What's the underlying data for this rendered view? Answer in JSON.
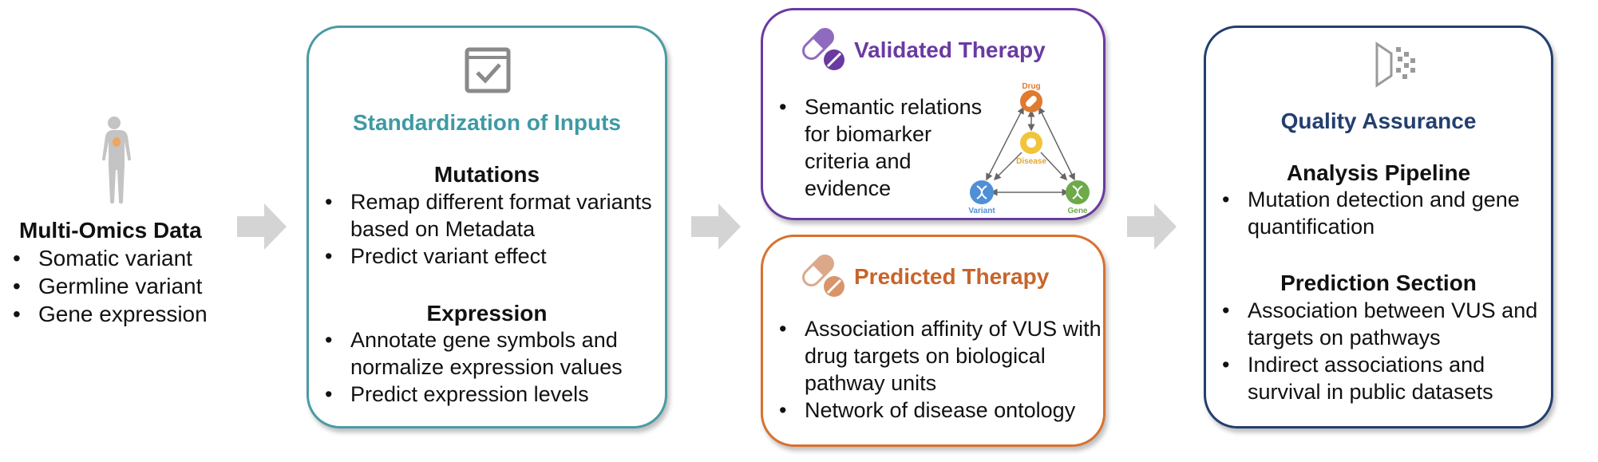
{
  "multi_omics": {
    "title": "Multi-Omics Data",
    "items": [
      "Somatic variant",
      "Germline variant",
      "Gene expression"
    ]
  },
  "standardization": {
    "title": "Standardization of Inputs",
    "mutations": {
      "title": "Mutations",
      "items": [
        "Remap different format variants based on Metadata",
        "Predict variant effect"
      ]
    },
    "expression": {
      "title": "Expression",
      "items": [
        "Annotate gene symbols and normalize expression values",
        "Predict expression levels"
      ]
    }
  },
  "validated": {
    "title": "Validated Therapy",
    "items": [
      "Semantic relations for biomarker criteria and evidence"
    ],
    "diagram": {
      "drug": "Drug",
      "disease": "Disease",
      "variant": "Variant",
      "gene": "Gene"
    }
  },
  "predicted": {
    "title": "Predicted Therapy",
    "items": [
      "Association affinity of VUS with drug targets on biological pathway units",
      "Network of disease ontology"
    ]
  },
  "qa": {
    "title": "Quality Assurance",
    "analysis": {
      "title": "Analysis Pipeline",
      "items": [
        "Mutation detection and gene quantification"
      ]
    },
    "prediction": {
      "title": "Prediction Section",
      "items": [
        "Association between VUS and targets on pathways",
        "Indirect associations and survival in public datasets"
      ]
    }
  },
  "colors": {
    "teal": "#4a9ba3",
    "purple": "#6a3aa1",
    "orange": "#d9712e",
    "navy": "#233f6e",
    "arrow": "#d4d4d4"
  },
  "icons": [
    "human-body-icon",
    "checkbox-window-icon",
    "pill-icon",
    "scatter-funnel-icon",
    "arrow-icon"
  ]
}
